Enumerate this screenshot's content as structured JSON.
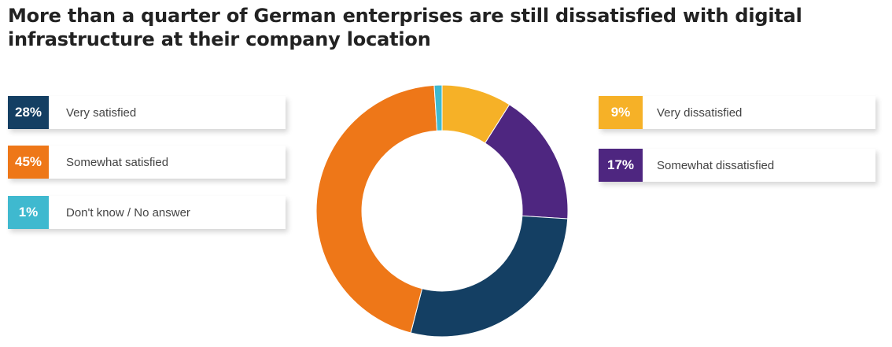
{
  "title": "More than a quarter of German enterprises are still dissatisfied with digital infrastructure at their company location",
  "chart_data": {
    "type": "pie",
    "variant": "donut",
    "title": "More than a quarter of German enterprises are still dissatisfied with digital infrastructure at their company location",
    "unit": "%",
    "slices": [
      {
        "label": "Very dissatisfied",
        "value": 9,
        "display": "9%",
        "color": "#F6B127"
      },
      {
        "label": "Somewhat dissatisfied",
        "value": 17,
        "display": "17%",
        "color": "#4E2680"
      },
      {
        "label": "Very satisfied",
        "value": 28,
        "display": "28%",
        "color": "#143F63"
      },
      {
        "label": "Somewhat satisfied",
        "value": 45,
        "display": "45%",
        "color": "#EE7718"
      },
      {
        "label": "Don't know / No answer",
        "value": 1,
        "display": "1%",
        "color": "#3FB9CF"
      }
    ],
    "legend": {
      "left": [
        "Very satisfied",
        "Somewhat satisfied",
        "Don't know / No answer"
      ],
      "right": [
        "Very dissatisfied",
        "Somewhat dissatisfied"
      ]
    }
  }
}
